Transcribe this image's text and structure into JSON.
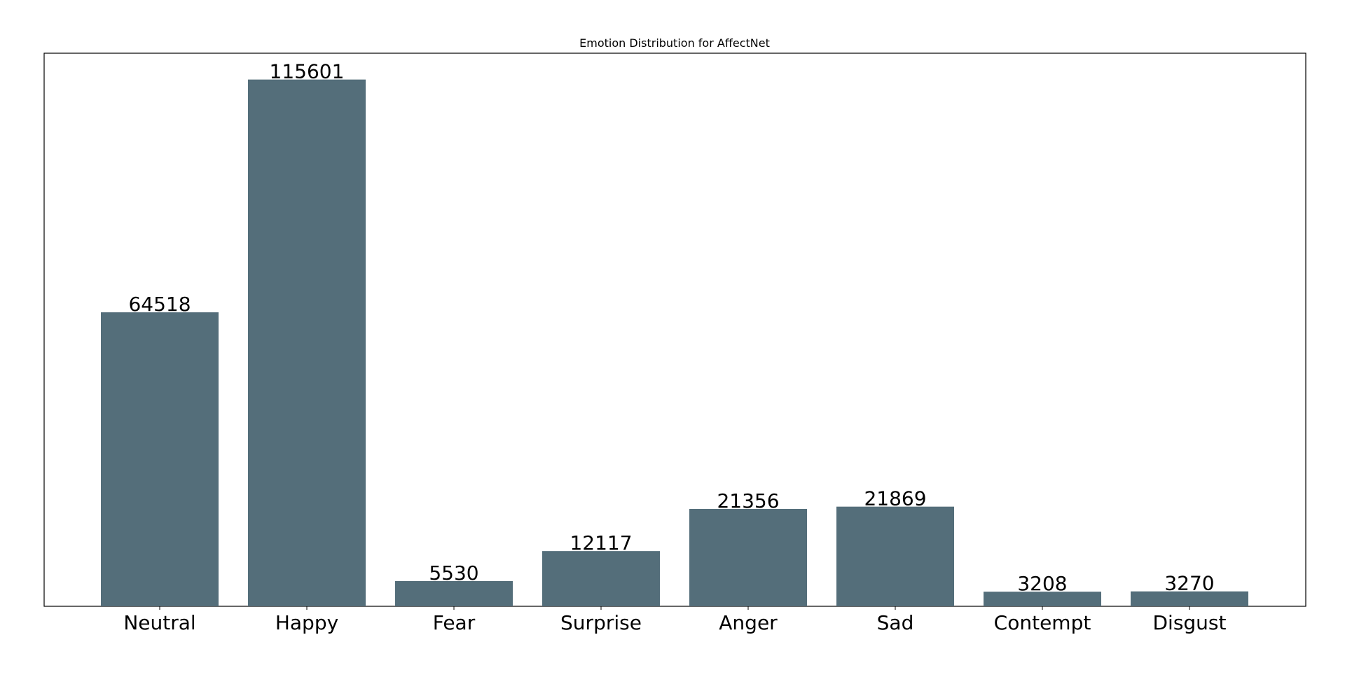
{
  "chart_data": {
    "type": "bar",
    "title": "Emotion Distribution for AffectNet",
    "xlabel": "",
    "ylabel": "",
    "categories": [
      "Neutral",
      "Happy",
      "Fear",
      "Surprise",
      "Anger",
      "Sad",
      "Contempt",
      "Disgust"
    ],
    "values": [
      64518,
      115601,
      5530,
      12117,
      21356,
      21869,
      3208,
      3270
    ],
    "ylim": [
      0,
      121381
    ],
    "y_ticks_visible": false,
    "grid": false,
    "legend": "none",
    "bar_color": "#546e7a",
    "value_labels": true
  }
}
